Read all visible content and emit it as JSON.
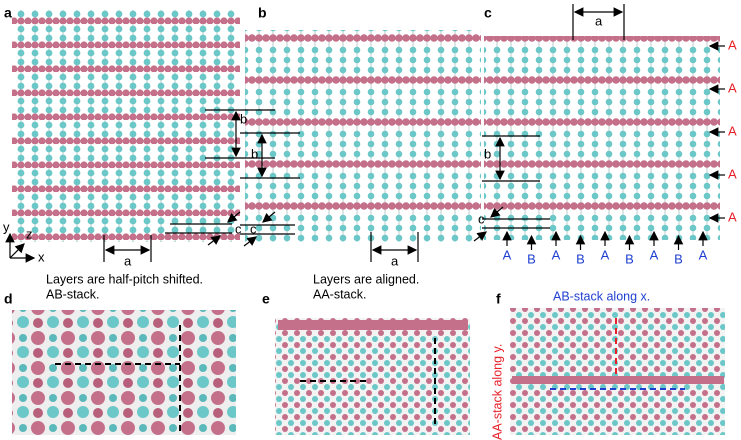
{
  "panels": {
    "a": {
      "label": "a",
      "dim_b": "b",
      "dim_c": "c",
      "dim_a": "a",
      "axes": [
        "y",
        "z",
        "x"
      ],
      "caption": [
        "Layers are half-pitch shifted.",
        "AB-stack."
      ]
    },
    "b": {
      "label": "b",
      "dim_b": "b",
      "dim_c": "c",
      "dim_a": "a",
      "caption": [
        "Layers are aligned.",
        "AA-stack."
      ]
    },
    "c": {
      "label": "c",
      "dim_a": "a",
      "dim_b": "b",
      "dim_c": "c",
      "right_layers": [
        "A",
        "A",
        "A",
        "A",
        "A"
      ],
      "bottom_layers": [
        "A",
        "B",
        "A",
        "B",
        "A",
        "B",
        "A",
        "B",
        "A"
      ]
    },
    "d": {
      "label": "d"
    },
    "e": {
      "label": "e"
    },
    "f": {
      "label": "f",
      "caption_x": "AB-stack along x.",
      "caption_y": "AA-stack along y."
    }
  }
}
